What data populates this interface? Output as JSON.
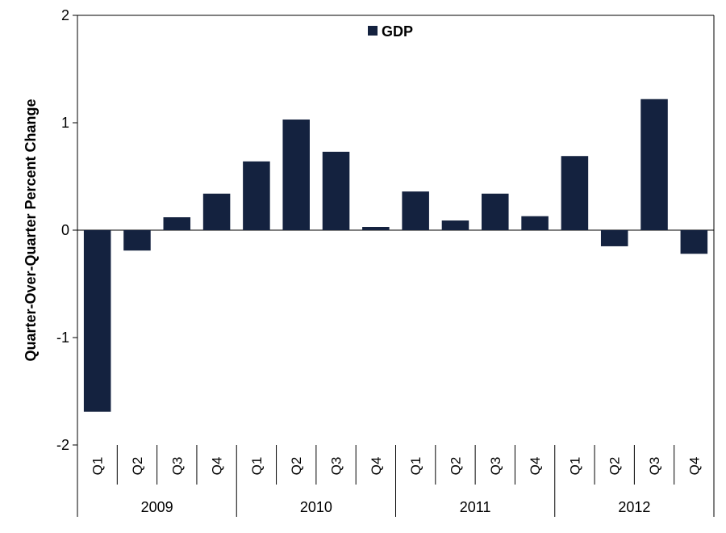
{
  "chart_data": {
    "type": "bar",
    "title": "",
    "xlabel": "",
    "ylabel": "Quarter-Over-Quarter Percent Change",
    "ylim": [
      -2,
      2
    ],
    "yticks": [
      "-2",
      "-1",
      "0",
      "1",
      "2"
    ],
    "ytick_values": [
      -2,
      -1,
      0,
      1,
      2
    ],
    "grid": false,
    "legend": {
      "placement": "top-center",
      "entries": [
        "GDP"
      ]
    },
    "years": [
      "2009",
      "2010",
      "2011",
      "2012"
    ],
    "categories": [
      "Q1",
      "Q2",
      "Q3",
      "Q4",
      "Q1",
      "Q2",
      "Q3",
      "Q4",
      "Q1",
      "Q2",
      "Q3",
      "Q4",
      "Q1",
      "Q2",
      "Q3",
      "Q4"
    ],
    "series": [
      {
        "name": "GDP",
        "color": "#14223f",
        "values": [
          -1.69,
          -0.19,
          0.12,
          0.34,
          0.64,
          1.03,
          0.73,
          0.03,
          0.36,
          0.09,
          0.34,
          0.13,
          0.69,
          -0.15,
          1.22,
          -0.22
        ]
      }
    ]
  }
}
